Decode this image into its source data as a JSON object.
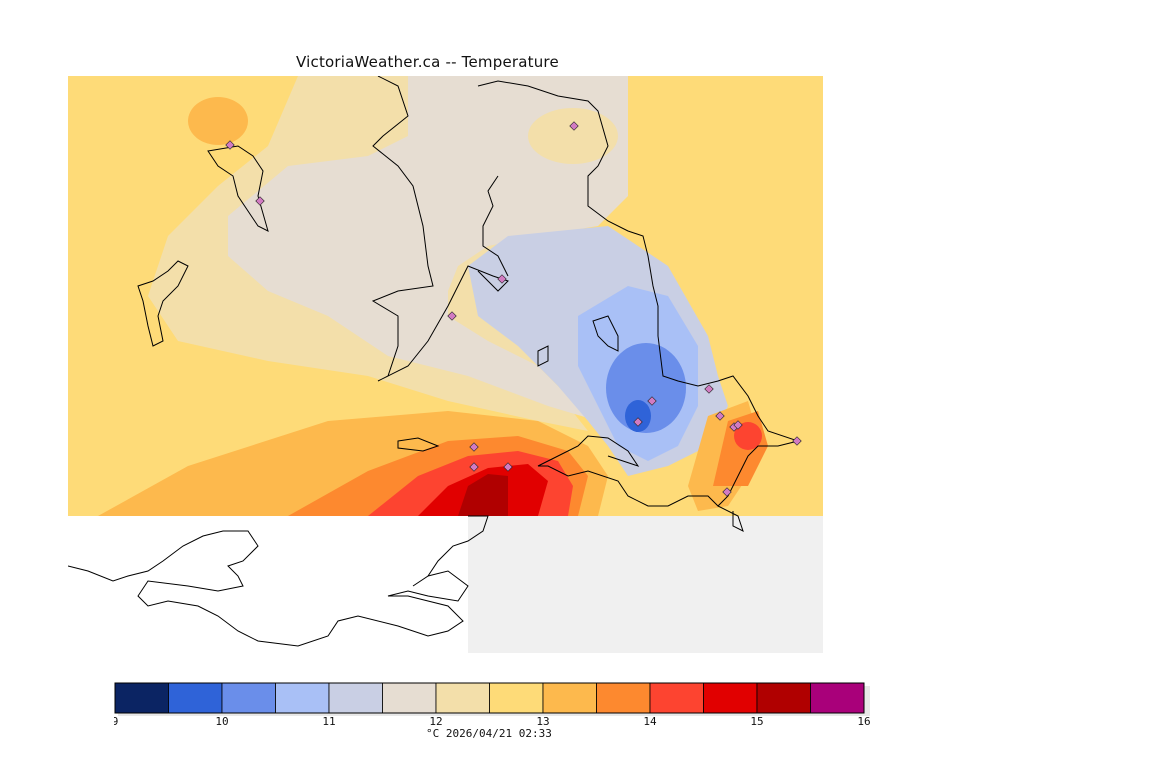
{
  "title": "VictoriaWeather.ca -- Temperature",
  "legend": {
    "bins": [
      {
        "from": 9,
        "to": 9.5,
        "color": "#0b2463"
      },
      {
        "from": 9.5,
        "to": 10,
        "color": "#2f63d8"
      },
      {
        "from": 10,
        "to": 10.5,
        "color": "#6a8eea"
      },
      {
        "from": 10.5,
        "to": 11,
        "color": "#a9c0f6"
      },
      {
        "from": 11,
        "to": 11.5,
        "color": "#c9cfe4"
      },
      {
        "from": 11.5,
        "to": 12,
        "color": "#e6ddd2"
      },
      {
        "from": 12,
        "to": 12.5,
        "color": "#f3dfaa"
      },
      {
        "from": 12.5,
        "to": 13,
        "color": "#fedb78"
      },
      {
        "from": 13,
        "to": 13.5,
        "color": "#fdb94d"
      },
      {
        "from": 13.5,
        "to": 14,
        "color": "#fd892f"
      },
      {
        "from": 14,
        "to": 14.5,
        "color": "#fd4430"
      },
      {
        "from": 14.5,
        "to": 15,
        "color": "#e10000"
      },
      {
        "from": 15,
        "to": 15.5,
        "color": "#b00000"
      },
      {
        "from": 15.5,
        "to": 16,
        "color": "#a9007a"
      }
    ],
    "tick_labels": [
      "9",
      "10",
      "11",
      "12",
      "13",
      "14",
      "15",
      "16"
    ]
  },
  "footer": "°C  2026/04/21 02:33",
  "map": {
    "background_color": "#f0f0f0",
    "station_marker": "diamond",
    "station_color": "#c05aa8",
    "station_count": 16
  }
}
